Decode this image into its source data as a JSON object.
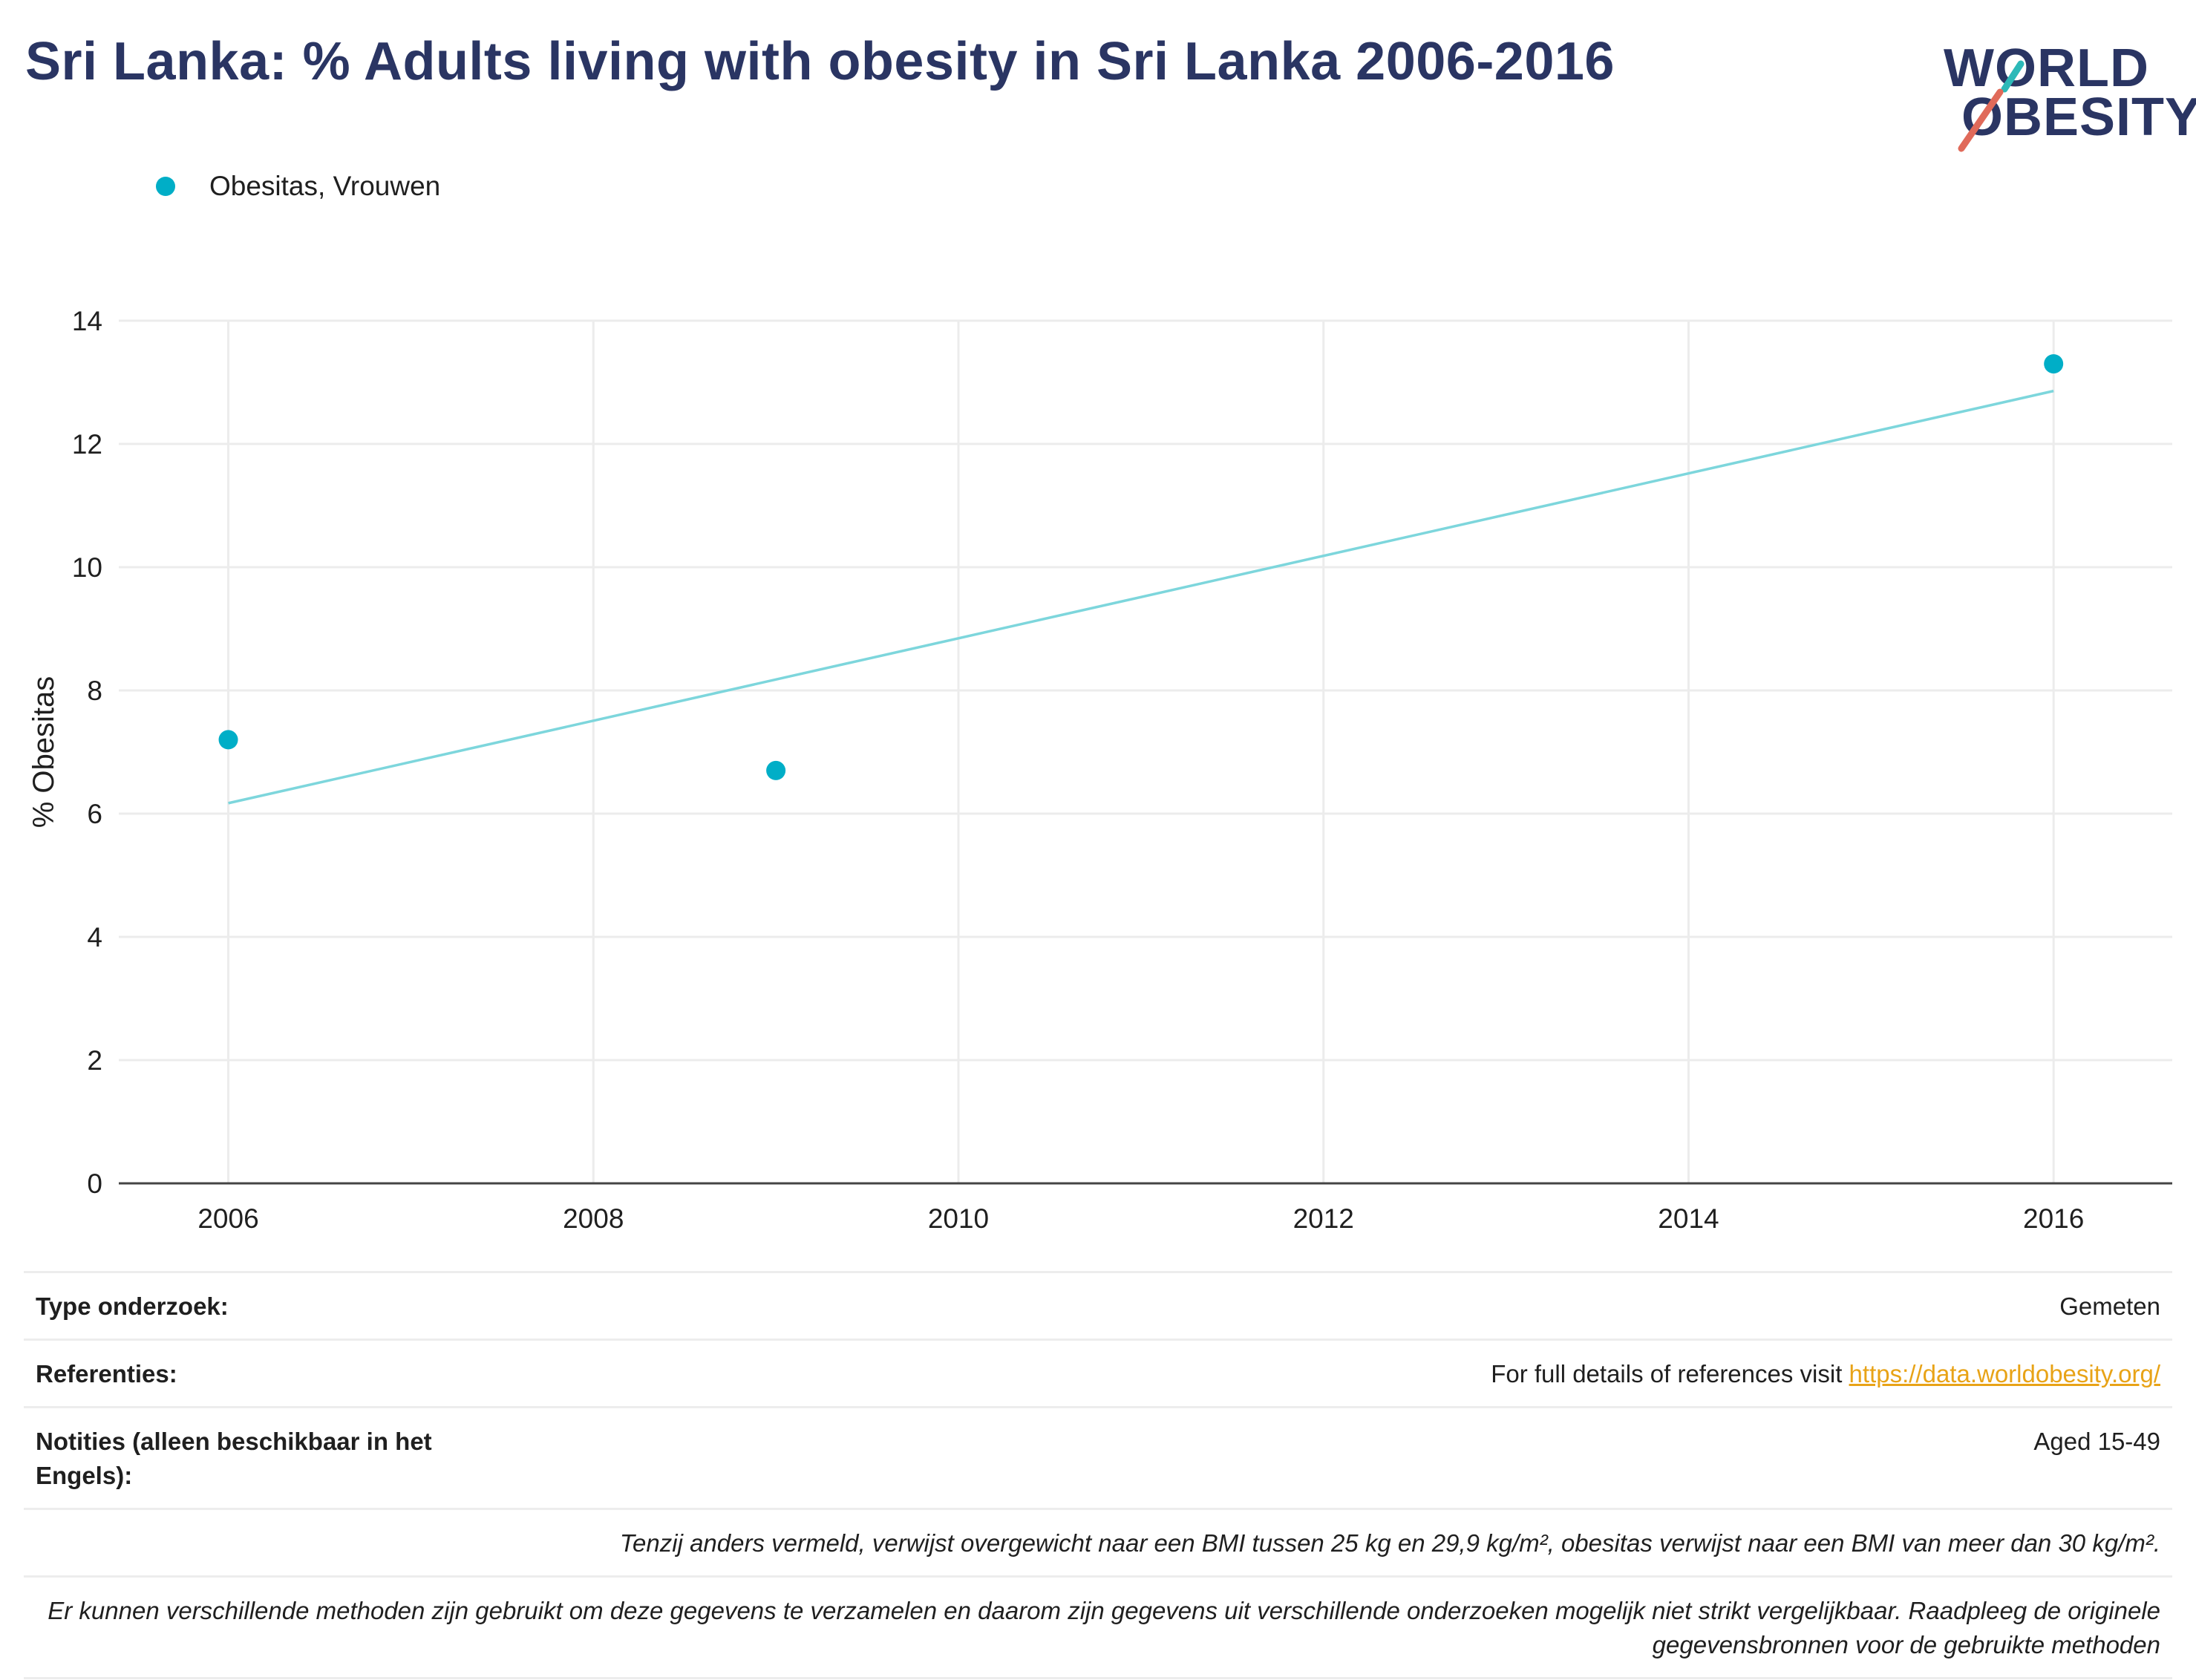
{
  "title": "Sri Lanka: % Adults living with obesity in Sri Lanka 2006-2016",
  "logo": {
    "line1": "WORLD",
    "line2": "OBESITY",
    "accent_teal": "#2cb9b8",
    "accent_coral": "#e06a5a"
  },
  "legend": {
    "label": "Obesitas, Vrouwen"
  },
  "colors": {
    "series": "#00aec7",
    "trend": "#7dd6dc",
    "title": "#2a3563",
    "grid": "#ececec"
  },
  "chart_data": {
    "type": "scatter",
    "title": "Sri Lanka: % Adults living with obesity in Sri Lanka 2006-2016",
    "xlabel": "",
    "ylabel": "% Obesitas",
    "xlim": [
      2005.4,
      2016.65
    ],
    "ylim": [
      0,
      14
    ],
    "xticks": [
      2006,
      2008,
      2010,
      2012,
      2014,
      2016
    ],
    "yticks": [
      0,
      2,
      4,
      6,
      8,
      10,
      12,
      14
    ],
    "grid": true,
    "legend_position": "top-left",
    "series": [
      {
        "name": "Obesitas, Vrouwen",
        "x": [
          2006,
          2009,
          2016
        ],
        "y": [
          7.2,
          6.7,
          13.3
        ]
      }
    ],
    "trendline": {
      "x": [
        2006,
        2016
      ],
      "y": [
        6.17,
        12.86
      ]
    }
  },
  "info": {
    "type_label": "Type onderzoek:",
    "type_value": "Gemeten",
    "ref_label": "Referenties:",
    "ref_prefix": "For full details of references visit ",
    "ref_link": "https://data.worldobesity.org/",
    "notes_label": "Notities (alleen beschikbaar in het Engels):",
    "notes_value": "Aged 15-49",
    "definition": "Tenzij anders vermeld, verwijst overgewicht naar een BMI tussen 25 kg en 29,9 kg/m², obesitas verwijst naar een BMI van meer dan 30 kg/m².",
    "disclaimer": "Er kunnen verschillende methoden zijn gebruikt om deze gegevens te verzamelen en daarom zijn gegevens uit verschillende onderzoeken mogelijk niet strikt vergelijkbaar. Raadpleeg de originele gegevensbronnen voor de gebruikte methoden"
  }
}
